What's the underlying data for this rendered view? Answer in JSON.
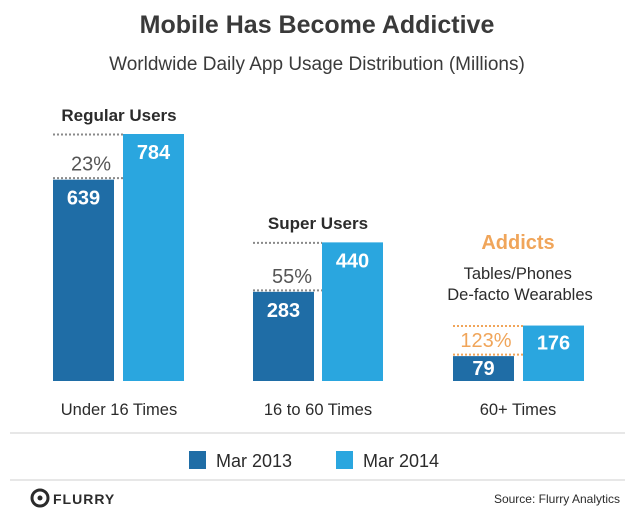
{
  "chart_data": {
    "type": "bar",
    "title": "Mobile Has Become Addictive",
    "subtitle": "Worldwide Daily App Usage Distribution (Millions)",
    "categories": [
      "Under 16 Times",
      "16 to 60 Times",
      "60+ Times"
    ],
    "group_labels": [
      "Regular Users",
      "Super Users",
      "Addicts"
    ],
    "group_note": "Tables/Phones De-facto Wearables",
    "growth_labels": [
      "23%",
      "55%",
      "123%"
    ],
    "series": [
      {
        "name": "Mar 2013",
        "color": "#1f6da6",
        "values": [
          639,
          283,
          79
        ]
      },
      {
        "name": "Mar 2014",
        "color": "#2aa6df",
        "values": [
          784,
          440,
          176
        ]
      }
    ],
    "highlight_color": "#f0a55a"
  },
  "footer": {
    "brand": "FLURRY",
    "source": "Source: Flurry Analytics"
  }
}
